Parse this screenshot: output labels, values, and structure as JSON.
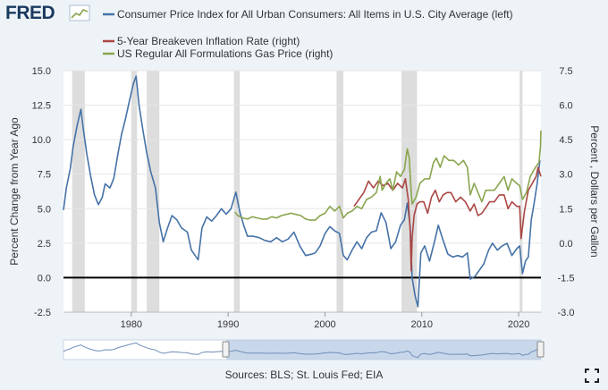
{
  "logo": {
    "text": "FRED"
  },
  "legend": [
    {
      "label": "Consumer Price Index for All Urban Consumers: All Items in U.S. City Average (left)",
      "color": "#4572a7"
    },
    {
      "label": "5-Year Breakeven Inflation Rate (right)",
      "color": "#aa4643"
    },
    {
      "label": "US Regular All Formulations Gas Price (right)",
      "color": "#89a54e"
    }
  ],
  "footer": {
    "sources": "Sources: BLS; St. Louis Fed; EIA"
  },
  "colors": {
    "background": "#eef3f8",
    "plot_bg": "#ffffff",
    "recession": "#dddddd",
    "zero_line": "#000000",
    "navigator_fill": "#b5c9e3"
  },
  "chart_data": {
    "type": "line",
    "ylabel_left": "Percent Change from Year Ago",
    "ylabel_right": "Percent , Dollars per Gallon",
    "xlim": [
      1973.0,
      2022.3
    ],
    "ylim_left": [
      -2.5,
      15.0
    ],
    "ylim_right": [
      -3.0,
      7.5
    ],
    "left_ticks": [
      "15.0",
      "12.5",
      "10.0",
      "7.5",
      "5.0",
      "2.5",
      "0.0",
      "-2.5"
    ],
    "right_ticks": [
      "7.5",
      "6.0",
      "4.5",
      "3.0",
      "1.5",
      "0.0",
      "-1.5",
      "-3.0"
    ],
    "x_ticks": [
      "1980",
      "1990",
      "2000",
      "2010",
      "2020"
    ],
    "grid": true,
    "legend_position": "top-left",
    "recessions": [
      [
        1973.9,
        1975.2
      ],
      [
        1980.0,
        1980.6
      ],
      [
        1981.6,
        1982.9
      ],
      [
        1990.6,
        1991.2
      ],
      [
        2001.2,
        2001.9
      ],
      [
        2007.9,
        2009.5
      ],
      [
        2020.1,
        2020.4
      ]
    ],
    "series": [
      {
        "name": "Consumer Price Index for All Urban Consumers: All Items in U.S. City Average (left)",
        "axis": "left",
        "x": [
          1973.0,
          1973.3,
          1973.7,
          1974.0,
          1974.4,
          1974.8,
          1975.0,
          1975.4,
          1975.8,
          1976.2,
          1976.6,
          1977.0,
          1977.3,
          1977.8,
          1978.2,
          1978.6,
          1979.0,
          1979.4,
          1979.8,
          1980.2,
          1980.5,
          1980.8,
          1981.2,
          1981.6,
          1982.0,
          1982.5,
          1982.9,
          1983.3,
          1983.7,
          1984.2,
          1984.7,
          1985.2,
          1985.8,
          1986.2,
          1986.6,
          1986.9,
          1987.3,
          1987.8,
          1988.3,
          1988.8,
          1989.3,
          1989.8,
          1990.3,
          1990.8,
          1991.2,
          1991.6,
          1992.0,
          1992.6,
          1993.2,
          1993.8,
          1994.4,
          1995.0,
          1995.6,
          1996.2,
          1996.8,
          1997.4,
          1998.0,
          1998.6,
          1999.0,
          1999.5,
          2000.0,
          2000.5,
          2001.0,
          2001.5,
          2001.9,
          2002.3,
          2002.8,
          2003.3,
          2003.8,
          2004.3,
          2004.8,
          2005.3,
          2005.8,
          2006.3,
          2006.8,
          2007.3,
          2007.8,
          2008.2,
          2008.5,
          2008.8,
          2009.0,
          2009.3,
          2009.6,
          2009.9,
          2010.3,
          2010.8,
          2011.3,
          2011.7,
          2012.2,
          2012.7,
          2013.2,
          2013.7,
          2014.2,
          2014.7,
          2015.0,
          2015.5,
          2015.9,
          2016.4,
          2016.9,
          2017.3,
          2017.8,
          2018.3,
          2018.8,
          2019.3,
          2019.8,
          2020.1,
          2020.4,
          2020.7,
          2021.0,
          2021.3,
          2021.6,
          2021.9,
          2022.2
        ],
        "y": [
          4.9,
          6.5,
          7.9,
          9.5,
          11.0,
          12.2,
          11.0,
          9.0,
          7.4,
          6.0,
          5.3,
          5.8,
          6.8,
          6.5,
          7.2,
          8.9,
          10.4,
          11.5,
          12.8,
          14.0,
          14.6,
          12.5,
          10.7,
          9.0,
          7.7,
          6.5,
          4.0,
          2.6,
          3.5,
          4.5,
          4.2,
          3.6,
          3.3,
          2.0,
          1.6,
          1.3,
          3.6,
          4.4,
          4.1,
          4.5,
          5.0,
          4.6,
          5.0,
          6.2,
          4.8,
          3.8,
          3.0,
          3.0,
          2.9,
          2.7,
          2.6,
          2.9,
          2.6,
          2.8,
          3.3,
          2.3,
          1.6,
          1.7,
          1.8,
          2.3,
          3.2,
          3.7,
          3.4,
          3.2,
          1.6,
          1.3,
          2.0,
          2.6,
          2.1,
          2.9,
          3.3,
          3.4,
          4.7,
          4.0,
          2.1,
          2.6,
          3.8,
          4.2,
          5.4,
          3.7,
          0.0,
          -1.3,
          -2.1,
          1.8,
          2.3,
          1.2,
          2.6,
          3.8,
          2.7,
          1.7,
          1.5,
          1.6,
          1.5,
          1.8,
          -0.1,
          0.1,
          0.5,
          1.0,
          2.0,
          2.5,
          2.0,
          2.3,
          2.5,
          1.6,
          2.1,
          2.3,
          0.3,
          1.2,
          1.5,
          4.2,
          5.4,
          6.8,
          8.5
        ]
      },
      {
        "name": "5-Year Breakeven Inflation Rate (right)",
        "axis": "right",
        "x": [
          2003.0,
          2003.5,
          2004.0,
          2004.5,
          2005.0,
          2005.5,
          2006.0,
          2006.5,
          2007.0,
          2007.5,
          2008.0,
          2008.3,
          2008.6,
          2008.8,
          2008.9,
          2009.0,
          2009.2,
          2009.5,
          2009.8,
          2010.2,
          2010.6,
          2011.0,
          2011.4,
          2011.8,
          2012.2,
          2012.6,
          2013.0,
          2013.5,
          2014.0,
          2014.5,
          2015.0,
          2015.4,
          2015.8,
          2016.2,
          2016.7,
          2017.0,
          2017.5,
          2018.0,
          2018.5,
          2018.9,
          2019.3,
          2019.8,
          2020.1,
          2020.25,
          2020.6,
          2021.0,
          2021.4,
          2021.8,
          2022.0,
          2022.3
        ],
        "y": [
          1.6,
          1.9,
          2.2,
          2.7,
          2.4,
          2.7,
          2.5,
          2.6,
          2.3,
          2.6,
          2.4,
          2.8,
          1.9,
          0.5,
          -1.2,
          0.2,
          1.2,
          1.7,
          1.8,
          1.8,
          1.3,
          2.0,
          2.3,
          1.8,
          2.1,
          2.2,
          2.2,
          1.8,
          2.0,
          1.8,
          1.4,
          1.7,
          1.2,
          1.3,
          1.6,
          1.8,
          1.8,
          2.1,
          2.1,
          1.5,
          1.8,
          1.6,
          1.6,
          0.2,
          1.4,
          2.3,
          2.6,
          2.9,
          3.3,
          2.9
        ]
      },
      {
        "name": "US Regular All Formulations Gas Price (right)",
        "axis": "right",
        "x": [
          1990.7,
          1991.0,
          1991.5,
          1992.0,
          1992.5,
          1993.0,
          1993.5,
          1994.0,
          1994.5,
          1995.0,
          1995.5,
          1996.0,
          1996.5,
          1997.0,
          1997.5,
          1998.0,
          1998.5,
          1999.0,
          1999.5,
          2000.0,
          2000.5,
          2001.0,
          2001.5,
          2001.9,
          2002.3,
          2002.8,
          2003.3,
          2003.8,
          2004.3,
          2004.8,
          2005.3,
          2005.7,
          2005.9,
          2006.3,
          2006.7,
          2007.0,
          2007.4,
          2007.8,
          2008.2,
          2008.5,
          2008.7,
          2008.9,
          2009.0,
          2009.4,
          2009.8,
          2010.3,
          2010.8,
          2011.2,
          2011.5,
          2011.9,
          2012.3,
          2012.8,
          2013.3,
          2013.8,
          2014.3,
          2014.7,
          2015.0,
          2015.4,
          2015.9,
          2016.2,
          2016.6,
          2017.0,
          2017.5,
          2018.0,
          2018.5,
          2018.9,
          2019.3,
          2019.8,
          2020.1,
          2020.4,
          2020.8,
          2021.2,
          2021.6,
          2021.9,
          2022.1,
          2022.25,
          2022.3
        ],
        "y": [
          1.35,
          1.2,
          1.1,
          1.05,
          1.15,
          1.1,
          1.05,
          1.05,
          1.15,
          1.1,
          1.2,
          1.25,
          1.3,
          1.25,
          1.2,
          1.05,
          1.0,
          1.0,
          1.2,
          1.3,
          1.6,
          1.4,
          1.6,
          1.1,
          1.3,
          1.4,
          1.6,
          1.5,
          1.9,
          2.0,
          2.2,
          2.9,
          2.3,
          2.6,
          2.8,
          2.3,
          3.1,
          2.9,
          3.2,
          4.1,
          3.7,
          2.2,
          1.7,
          2.0,
          2.6,
          2.8,
          2.8,
          3.5,
          3.7,
          3.3,
          3.8,
          3.6,
          3.6,
          3.4,
          3.6,
          3.3,
          2.1,
          2.6,
          2.1,
          1.8,
          2.3,
          2.3,
          2.3,
          2.6,
          2.9,
          2.3,
          2.8,
          2.6,
          2.5,
          1.9,
          2.2,
          2.9,
          3.2,
          3.4,
          3.5,
          4.2,
          4.9
        ]
      }
    ]
  }
}
